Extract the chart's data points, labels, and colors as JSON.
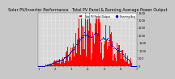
{
  "title": "Solar PV/Inverter Performance   Total PV Panel & Running Average Power Output",
  "title_fontsize": 3.5,
  "bg_color": "#c8c8c8",
  "plot_bg_color": "#d8d8d8",
  "bar_color": "#ff0000",
  "avg_color": "#0000cc",
  "grid_color": "#ffffff",
  "ymax": 3500,
  "ytick_labels": [
    "3.5k1",
    "3k1",
    "2.5k1",
    "2k1",
    "1.5k1",
    "1k1",
    "500",
    "0"
  ],
  "ytick_values": [
    3500,
    3000,
    2500,
    2000,
    1500,
    1000,
    500,
    0
  ],
  "tick_fontsize": 2.5,
  "n_points": 350,
  "legend_labels": [
    "Total PV Panel Output",
    "Running Avg"
  ],
  "legend_colors": [
    "#ff0000",
    "#0000cc"
  ]
}
